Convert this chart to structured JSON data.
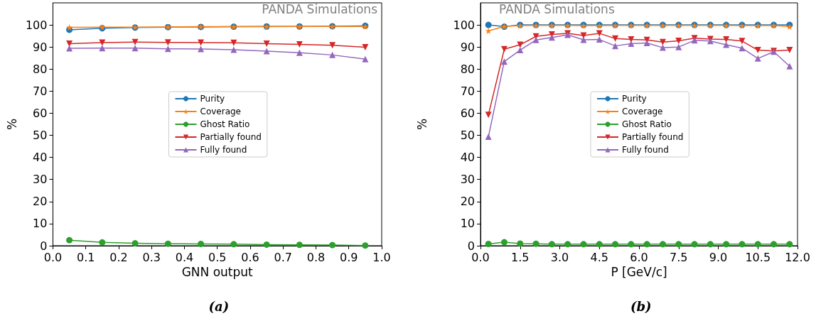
{
  "chart_data": [
    {
      "type": "line",
      "xlabel": "GNN output",
      "ylabel": "%",
      "annotations": [
        "PANDA Simulations",
        "(a)"
      ],
      "legend": "center",
      "grid": false,
      "x": [
        0.05,
        0.15,
        0.25,
        0.35,
        0.45,
        0.55,
        0.65,
        0.75,
        0.85,
        0.95
      ],
      "xlim": [
        0,
        1
      ],
      "xticks": [
        {
          "value": 0,
          "label": "0.0"
        },
        0.1,
        0.2,
        0.3,
        0.4,
        0.5,
        0.6,
        0.7,
        0.8,
        0.9,
        {
          "value": 1,
          "label": "1.0"
        }
      ],
      "ylim": [
        0,
        110
      ],
      "yticks": [
        0,
        10,
        20,
        30,
        40,
        50,
        60,
        70,
        80,
        90,
        100
      ],
      "series": [
        {
          "name": "Purity",
          "color": "#1f77b4",
          "marker": "circle",
          "values": [
            97.8,
            98.5,
            98.8,
            99.0,
            99.1,
            99.2,
            99.3,
            99.3,
            99.4,
            99.6
          ]
        },
        {
          "name": "Coverage",
          "color": "#ff7f0e",
          "marker": "star",
          "values": [
            98.9,
            99.0,
            99.0,
            99.1,
            99.2,
            99.2,
            99.2,
            99.3,
            99.3,
            99.3
          ]
        },
        {
          "name": "Ghost Ratio",
          "color": "#2ca02c",
          "marker": "circle",
          "values": [
            2.5,
            1.5,
            1.1,
            0.9,
            0.8,
            0.7,
            0.5,
            0.4,
            0.3,
            0.1
          ]
        },
        {
          "name": "Partially found",
          "color": "#d62728",
          "marker": "triangle-down",
          "values": [
            91.5,
            92.0,
            92.2,
            92.1,
            92.0,
            91.9,
            91.5,
            91.2,
            90.8,
            89.9
          ]
        },
        {
          "name": "Fully found",
          "color": "#9467bd",
          "marker": "triangle",
          "values": [
            89.4,
            89.5,
            89.5,
            89.2,
            89.1,
            88.8,
            88.1,
            87.4,
            86.4,
            84.5
          ]
        }
      ]
    },
    {
      "type": "line",
      "xlabel": "P [GeV/c]",
      "ylabel": "%",
      "annotations": [
        "PANDA Simulations",
        "(b)"
      ],
      "legend": "center",
      "grid": false,
      "x": [
        0.3,
        0.9,
        1.5,
        2.1,
        2.7,
        3.3,
        3.9,
        4.5,
        5.1,
        5.7,
        6.3,
        6.9,
        7.5,
        8.1,
        8.7,
        9.3,
        9.9,
        10.5,
        11.1,
        11.7
      ],
      "xlim": [
        0,
        12
      ],
      "xticks": [
        {
          "value": 0,
          "label": "0.0"
        },
        1.5,
        {
          "value": 3,
          "label": "3.0"
        },
        4.5,
        {
          "value": 6,
          "label": "6.0"
        },
        7.5,
        {
          "value": 9,
          "label": "9.0"
        },
        10.5,
        {
          "value": 12,
          "label": "12.0"
        }
      ],
      "ylim": [
        0,
        110
      ],
      "yticks": [
        0,
        10,
        20,
        30,
        40,
        50,
        60,
        70,
        80,
        90,
        100
      ],
      "series": [
        {
          "name": "Purity",
          "color": "#1f77b4",
          "marker": "circle",
          "values": [
            100,
            99.2,
            100,
            100,
            100,
            100,
            100,
            100,
            100,
            100,
            100,
            100,
            100,
            100,
            100,
            100,
            100,
            100,
            100,
            100
          ]
        },
        {
          "name": "Coverage",
          "color": "#ff7f0e",
          "marker": "star",
          "values": [
            97.3,
            99.3,
            99.7,
            99.8,
            99.8,
            99.8,
            99.7,
            99.7,
            99.8,
            99.8,
            99.8,
            99.8,
            99.8,
            99.8,
            99.8,
            99.8,
            99.7,
            99.7,
            99.8,
            99.2
          ]
        },
        {
          "name": "Ghost Ratio",
          "color": "#2ca02c",
          "marker": "circle",
          "values": [
            0.8,
            1.6,
            1.0,
            0.9,
            0.7,
            0.7,
            0.7,
            0.7,
            0.7,
            0.7,
            0.7,
            0.7,
            0.7,
            0.7,
            0.7,
            0.7,
            0.7,
            0.7,
            0.7,
            0.7
          ]
        },
        {
          "name": "Partially found",
          "color": "#d62728",
          "marker": "triangle-down",
          "values": [
            59.3,
            89.0,
            91.0,
            94.8,
            95.7,
            96.2,
            95.2,
            96.2,
            93.8,
            93.4,
            93.2,
            92.2,
            92.8,
            94.0,
            93.6,
            93.4,
            92.7,
            88.6,
            88.2,
            88.6
          ]
        },
        {
          "name": "Fully found",
          "color": "#9467bd",
          "marker": "triangle",
          "values": [
            49.4,
            83.4,
            88.6,
            93.2,
            94.3,
            95.5,
            93.3,
            93.4,
            90.5,
            91.5,
            91.8,
            89.7,
            90.0,
            93.0,
            92.7,
            91.0,
            89.5,
            84.8,
            87.9,
            81.3
          ]
        }
      ]
    }
  ]
}
